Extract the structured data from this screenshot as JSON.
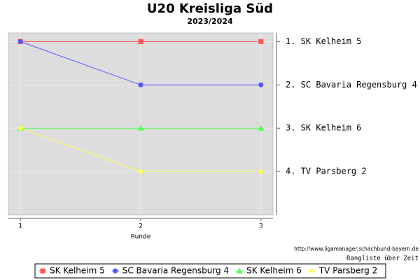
{
  "chart_data": {
    "type": "line",
    "title": "U20 Kreisliga Süd",
    "subtitle": "2023/2024",
    "x_label": "Runde",
    "x": [
      1,
      2,
      3
    ],
    "xlim": [
      0.9,
      3.1
    ],
    "xticks": [
      1,
      2,
      3
    ],
    "ylim": [
      0.8,
      5
    ],
    "inverted_y": true,
    "yticks": [
      {
        "value": 1,
        "label": "1. SK Kelheim 5"
      },
      {
        "value": 2,
        "label": "2. SC Bavaria Regensburg 4"
      },
      {
        "value": 3,
        "label": "3. SK Kelheim 6"
      },
      {
        "value": 4,
        "label": "4. TV Parsberg 2"
      }
    ],
    "grid": true,
    "source": "http://www.ligamanager.schachbund-bayern.de",
    "footer": "Rangliste über Zeit",
    "legend": "bottom",
    "series": [
      {
        "name": "SK Kelheim 5",
        "color": "#ff5555",
        "marker": "square",
        "values": [
          1,
          1,
          1
        ]
      },
      {
        "name": "SC Bavaria Regensburg 4",
        "color": "#5555ff",
        "marker": "circle",
        "values": [
          1,
          2,
          2
        ]
      },
      {
        "name": "SK Kelheim 6",
        "color": "#55ff55",
        "marker": "triangle",
        "values": [
          3,
          3,
          3
        ]
      },
      {
        "name": "TV Parsberg 2",
        "color": "#ffff55",
        "marker": "diamond",
        "values": [
          3,
          4,
          4
        ]
      }
    ]
  }
}
